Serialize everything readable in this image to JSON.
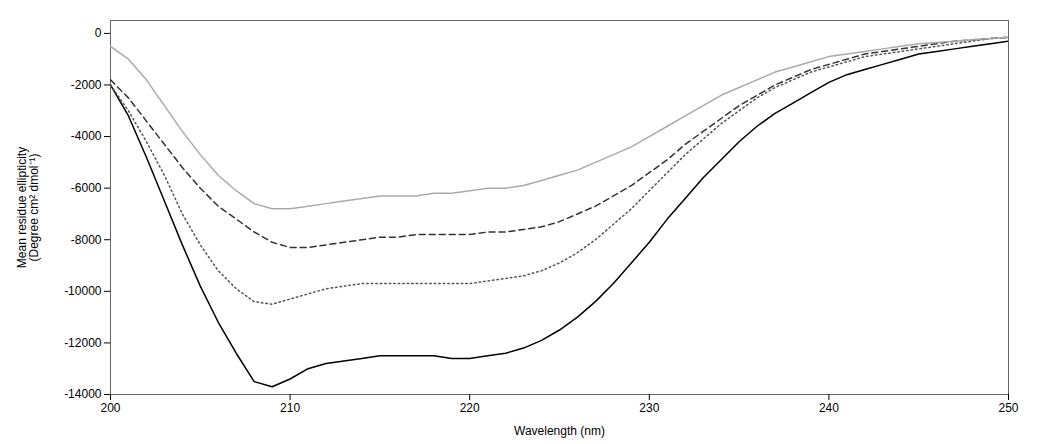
{
  "chart_data": {
    "type": "line",
    "xlabel": "Wavelength (nm)",
    "ylabel": "Mean residue ellipticity\n(Degree cm² dmol⁻¹)",
    "xlim": [
      200,
      250
    ],
    "ylim": [
      -14000,
      500
    ],
    "xticks": [
      200,
      210,
      220,
      230,
      240,
      250
    ],
    "yticks": [
      0,
      -2000,
      -4000,
      -6000,
      -8000,
      -10000,
      -12000,
      -14000
    ],
    "x": [
      200,
      201,
      202,
      203,
      204,
      205,
      206,
      207,
      208,
      209,
      210,
      211,
      212,
      213,
      214,
      215,
      216,
      217,
      218,
      219,
      220,
      221,
      222,
      223,
      224,
      225,
      226,
      227,
      228,
      229,
      230,
      231,
      232,
      233,
      234,
      235,
      236,
      237,
      238,
      239,
      240,
      241,
      242,
      243,
      244,
      245,
      246,
      247,
      248,
      249,
      250
    ],
    "series": [
      {
        "color": "#000000",
        "line_style": "solid",
        "values": [
          -2000,
          -3200,
          -4800,
          -6500,
          -8200,
          -9800,
          -11200,
          -12400,
          -13500,
          -13700,
          -13400,
          -13000,
          -12800,
          -12700,
          -12600,
          -12500,
          -12500,
          -12500,
          -12500,
          -12600,
          -12600,
          -12500,
          -12400,
          -12200,
          -11900,
          -11500,
          -11000,
          -10400,
          -9700,
          -8900,
          -8100,
          -7200,
          -6400,
          -5600,
          -4900,
          -4200,
          -3600,
          -3100,
          -2700,
          -2300,
          -1900,
          -1600,
          -1400,
          -1200,
          -1000,
          -800,
          -700,
          -600,
          -500,
          -400,
          -300
        ]
      },
      {
        "color": "#555555",
        "line_style": "dotted",
        "values": [
          -2000,
          -3000,
          -4200,
          -5500,
          -7000,
          -8200,
          -9200,
          -9900,
          -10400,
          -10500,
          -10300,
          -10100,
          -9900,
          -9800,
          -9700,
          -9700,
          -9700,
          -9700,
          -9700,
          -9700,
          -9700,
          -9600,
          -9500,
          -9400,
          -9200,
          -8900,
          -8500,
          -8000,
          -7400,
          -6800,
          -6100,
          -5400,
          -4700,
          -4100,
          -3500,
          -3000,
          -2500,
          -2100,
          -1800,
          -1500,
          -1300,
          -1100,
          -900,
          -800,
          -700,
          -600,
          -500,
          -400,
          -300,
          -200,
          -150
        ]
      },
      {
        "color": "#333333",
        "line_style": "dashed",
        "values": [
          -1800,
          -2500,
          -3400,
          -4300,
          -5200,
          -6000,
          -6700,
          -7200,
          -7700,
          -8100,
          -8300,
          -8300,
          -8200,
          -8100,
          -8000,
          -7900,
          -7900,
          -7800,
          -7800,
          -7800,
          -7800,
          -7700,
          -7700,
          -7600,
          -7500,
          -7300,
          -7000,
          -6700,
          -6300,
          -5900,
          -5400,
          -4900,
          -4300,
          -3800,
          -3300,
          -2800,
          -2400,
          -2000,
          -1700,
          -1400,
          -1200,
          -1000,
          -800,
          -700,
          -600,
          -500,
          -400,
          -300,
          -250,
          -200,
          -150
        ]
      },
      {
        "color": "#aaaaaa",
        "line_style": "solid",
        "values": [
          -500,
          -1000,
          -1800,
          -2800,
          -3800,
          -4700,
          -5500,
          -6100,
          -6600,
          -6800,
          -6800,
          -6700,
          -6600,
          -6500,
          -6400,
          -6300,
          -6300,
          -6300,
          -6200,
          -6200,
          -6100,
          -6000,
          -6000,
          -5900,
          -5700,
          -5500,
          -5300,
          -5000,
          -4700,
          -4400,
          -4000,
          -3600,
          -3200,
          -2800,
          -2400,
          -2100,
          -1800,
          -1500,
          -1300,
          -1100,
          -900,
          -800,
          -700,
          -600,
          -500,
          -400,
          -350,
          -300,
          -250,
          -200,
          -150
        ]
      }
    ]
  }
}
